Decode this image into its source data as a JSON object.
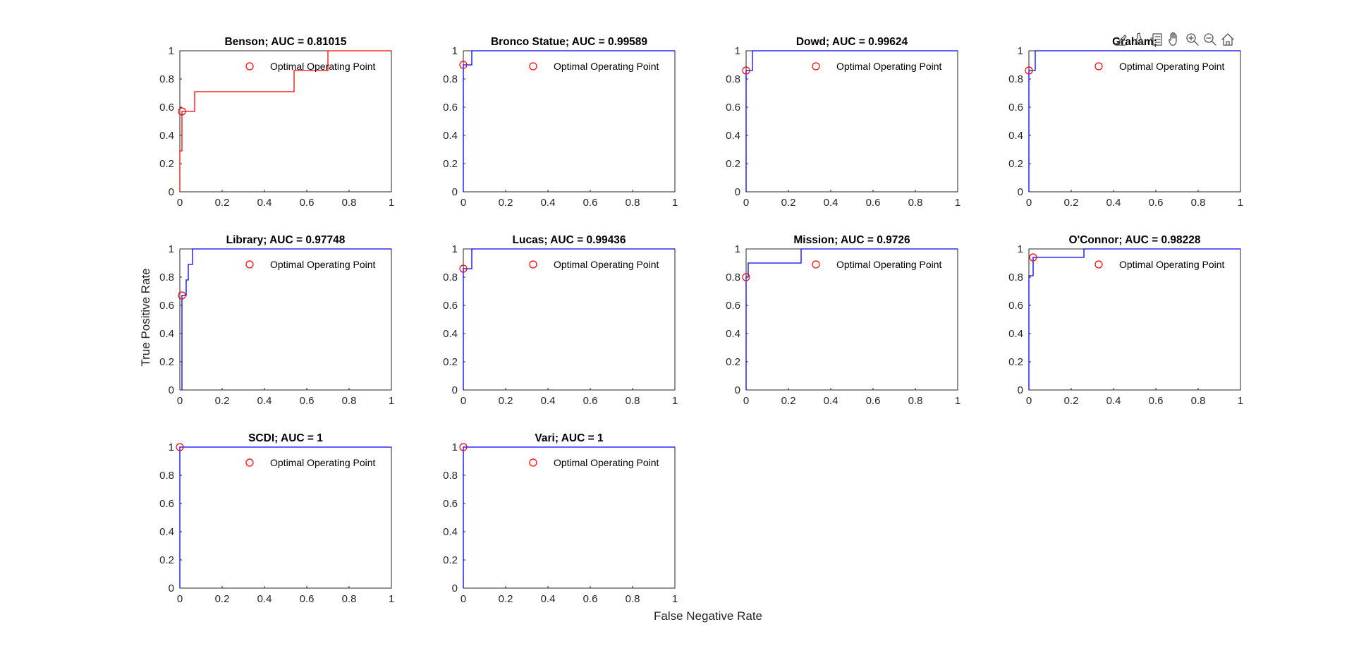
{
  "figure": {
    "xlabel": "False Negative Rate",
    "ylabel": "True Positive Rate",
    "background": "#ffffff"
  },
  "toolbar": {
    "icons": [
      "brush-icon",
      "data-tips-icon",
      "legend-icon",
      "pan-icon",
      "zoom-in-icon",
      "zoom-out-icon",
      "home-icon"
    ]
  },
  "colors": {
    "curve_default": "#0000ff",
    "curve_first": "#ff0000",
    "marker": "#ff0000",
    "axes": "#262626"
  },
  "chart_data": [
    {
      "type": "line",
      "title": "Benson; AUC = 0.81015",
      "series_color": "#ff0000",
      "x": [
        0,
        0,
        0.01,
        0.01,
        0.07,
        0.07,
        0.54,
        0.54,
        0.7,
        0.7,
        1.0
      ],
      "y": [
        0,
        0.29,
        0.29,
        0.57,
        0.57,
        0.71,
        0.71,
        0.86,
        0.86,
        1.0,
        1.0
      ],
      "optimal_point": [
        0.01,
        0.57
      ],
      "legend": "Optimal Operating Point",
      "xlim": [
        0,
        1
      ],
      "ylim": [
        0,
        1
      ],
      "xticks": [
        "0",
        "0.2",
        "0.4",
        "0.6",
        "0.8",
        "1"
      ],
      "yticks": [
        "0",
        "0.2",
        "0.4",
        "0.6",
        "0.8",
        "1"
      ]
    },
    {
      "type": "line",
      "title": "Bronco Statue; AUC = 0.99589",
      "series_color": "#0000ff",
      "x": [
        0,
        0,
        0.04,
        0.04,
        1.0
      ],
      "y": [
        0,
        0.9,
        0.9,
        1.0,
        1.0
      ],
      "optimal_point": [
        0,
        0.9
      ],
      "legend": "Optimal Operating Point",
      "xlim": [
        0,
        1
      ],
      "ylim": [
        0,
        1
      ],
      "xticks": [
        "0",
        "0.2",
        "0.4",
        "0.6",
        "0.8",
        "1"
      ],
      "yticks": [
        "0",
        "0.2",
        "0.4",
        "0.6",
        "0.8",
        "1"
      ]
    },
    {
      "type": "line",
      "title": "Dowd; AUC = 0.99624",
      "series_color": "#0000ff",
      "x": [
        0,
        0,
        0.03,
        0.03,
        1.0
      ],
      "y": [
        0,
        0.86,
        0.86,
        1.0,
        1.0
      ],
      "optimal_point": [
        0,
        0.86
      ],
      "legend": "Optimal Operating Point",
      "xlim": [
        0,
        1
      ],
      "ylim": [
        0,
        1
      ],
      "xticks": [
        "0",
        "0.2",
        "0.4",
        "0.6",
        "0.8",
        "1"
      ],
      "yticks": [
        "0",
        "0.2",
        "0.4",
        "0.6",
        "0.8",
        "1"
      ]
    },
    {
      "type": "line",
      "title": "Graham;",
      "series_color": "#0000ff",
      "x": [
        0,
        0,
        0.03,
        0.03,
        1.0
      ],
      "y": [
        0,
        0.86,
        0.86,
        1.0,
        1.0
      ],
      "optimal_point": [
        0,
        0.86
      ],
      "legend": "Optimal Operating Point",
      "xlim": [
        0,
        1
      ],
      "ylim": [
        0,
        1
      ],
      "xticks": [
        "0",
        "0.2",
        "0.4",
        "0.6",
        "0.8",
        "1"
      ],
      "yticks": [
        "0",
        "0.2",
        "0.4",
        "0.6",
        "0.8",
        "1"
      ]
    },
    {
      "type": "line",
      "title": "Library; AUC = 0.97748",
      "series_color": "#0000ff",
      "x": [
        0.01,
        0.01,
        0.03,
        0.03,
        0.04,
        0.04,
        0.05,
        0.05,
        0.06,
        0.06,
        1.0
      ],
      "y": [
        0,
        0.67,
        0.67,
        0.78,
        0.78,
        0.89,
        0.89,
        0.89,
        0.89,
        1.0,
        1.0
      ],
      "optimal_point": [
        0.01,
        0.67
      ],
      "legend": "Optimal Operating Point",
      "xlim": [
        0,
        1
      ],
      "ylim": [
        0,
        1
      ],
      "xticks": [
        "0",
        "0.2",
        "0.4",
        "0.6",
        "0.8",
        "1"
      ],
      "yticks": [
        "0",
        "0.2",
        "0.4",
        "0.6",
        "0.8",
        "1"
      ]
    },
    {
      "type": "line",
      "title": "Lucas; AUC = 0.99436",
      "series_color": "#0000ff",
      "x": [
        0,
        0,
        0.04,
        0.04,
        1.0
      ],
      "y": [
        0,
        0.86,
        0.86,
        1.0,
        1.0
      ],
      "optimal_point": [
        0,
        0.86
      ],
      "legend": "Optimal Operating Point",
      "xlim": [
        0,
        1
      ],
      "ylim": [
        0,
        1
      ],
      "xticks": [
        "0",
        "0.2",
        "0.4",
        "0.6",
        "0.8",
        "1"
      ],
      "yticks": [
        "0",
        "0.2",
        "0.4",
        "0.6",
        "0.8",
        "1"
      ]
    },
    {
      "type": "line",
      "title": "Mission; AUC = 0.9726",
      "series_color": "#0000ff",
      "x": [
        0,
        0,
        0.01,
        0.01,
        0.26,
        0.26,
        1.0
      ],
      "y": [
        0,
        0.8,
        0.8,
        0.9,
        0.9,
        1.0,
        1.0
      ],
      "optimal_point": [
        0,
        0.8
      ],
      "legend": "Optimal Operating Point",
      "xlim": [
        0,
        1
      ],
      "ylim": [
        0,
        1
      ],
      "xticks": [
        "0",
        "0.2",
        "0.4",
        "0.6",
        "0.8",
        "1"
      ],
      "yticks": [
        "0",
        "0.2",
        "0.4",
        "0.6",
        "0.8",
        "1"
      ]
    },
    {
      "type": "line",
      "title": "O'Connor; AUC = 0.98228",
      "series_color": "#0000ff",
      "x": [
        0,
        0,
        0.02,
        0.02,
        0.26,
        0.26,
        1.0
      ],
      "y": [
        0,
        0.81,
        0.81,
        0.94,
        0.94,
        1.0,
        1.0
      ],
      "optimal_point": [
        0.02,
        0.94
      ],
      "legend": "Optimal Operating Point",
      "xlim": [
        0,
        1
      ],
      "ylim": [
        0,
        1
      ],
      "xticks": [
        "0",
        "0.2",
        "0.4",
        "0.6",
        "0.8",
        "1"
      ],
      "yticks": [
        "0",
        "0.2",
        "0.4",
        "0.6",
        "0.8",
        "1"
      ]
    },
    {
      "type": "line",
      "title": "SCDI; AUC = 1",
      "series_color": "#0000ff",
      "x": [
        0,
        0,
        1.0
      ],
      "y": [
        0,
        1.0,
        1.0
      ],
      "optimal_point": [
        0,
        1.0
      ],
      "legend": "Optimal Operating Point",
      "xlim": [
        0,
        1
      ],
      "ylim": [
        0,
        1
      ],
      "xticks": [
        "0",
        "0.2",
        "0.4",
        "0.6",
        "0.8",
        "1"
      ],
      "yticks": [
        "0",
        "0.2",
        "0.4",
        "0.6",
        "0.8",
        "1"
      ]
    },
    {
      "type": "line",
      "title": "Vari; AUC = 1",
      "series_color": "#0000ff",
      "x": [
        0,
        0,
        1.0
      ],
      "y": [
        0,
        1.0,
        1.0
      ],
      "optimal_point": [
        0,
        1.0
      ],
      "legend": "Optimal Operating Point",
      "xlim": [
        0,
        1
      ],
      "ylim": [
        0,
        1
      ],
      "xticks": [
        "0",
        "0.2",
        "0.4",
        "0.6",
        "0.8",
        "1"
      ],
      "yticks": [
        "0",
        "0.2",
        "0.4",
        "0.6",
        "0.8",
        "1"
      ]
    }
  ]
}
